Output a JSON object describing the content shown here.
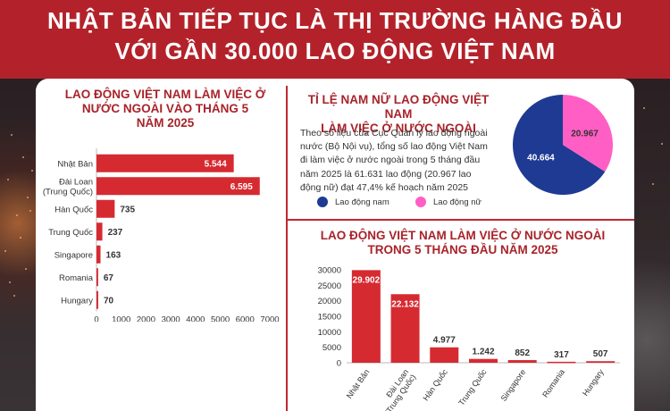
{
  "header": {
    "title_line1": "NHẬT BẢN TIẾP TỤC LÀ THỊ TRƯỜNG HÀNG ĐẦU",
    "title_line2": "VỚI GẦN 30.000 LAO ĐỘNG VIỆT NAM"
  },
  "colors": {
    "red": "#d62a31",
    "navy": "#1f3a93",
    "pink": "#ff5fc4",
    "title_red": "#a8232a",
    "header_bg": "#b3222a"
  },
  "chart_data": [
    {
      "type": "bar",
      "orientation": "horizontal",
      "title_lines": [
        "LAO ĐỘNG VIỆT NAM LÀM VIỆC Ở",
        "NƯỚC NGOÀI VÀO THÁNG 5",
        "NĂM 2025"
      ],
      "categories": [
        [
          "Nhật Bản"
        ],
        [
          "Đài Loan",
          "(Trung Quốc)"
        ],
        [
          "Hàn Quốc"
        ],
        [
          "Trung Quốc"
        ],
        [
          "Singapore"
        ],
        [
          "Romania"
        ],
        [
          "Hungary"
        ]
      ],
      "values": [
        5544,
        6595,
        735,
        237,
        163,
        67,
        70
      ],
      "value_labels": [
        "5.544",
        "6.595",
        "735",
        "237",
        "163",
        "67",
        "70"
      ],
      "xlim": [
        0,
        7000
      ],
      "ticks": [
        0,
        1000,
        2000,
        3000,
        4000,
        5000,
        6000,
        7000
      ]
    },
    {
      "type": "pie",
      "title_lines": [
        "TỈ LỆ NAM NỮ LAO ĐỘNG VIỆT NAM",
        "LÀM VIỆC Ở NƯỚC NGOÀI"
      ],
      "slices": [
        {
          "label": "Lao động nam",
          "value": 40664,
          "value_label": "40.664",
          "color": "#1f3a93"
        },
        {
          "label": "Lao động nữ",
          "value": 20967,
          "value_label": "20.967",
          "color": "#ff5fc4"
        }
      ],
      "description_lines": [
        "Theo số liệu của Cục Quản lý lao động ngoài",
        "nước (Bộ Nội vụ), tổng số lao động Việt Nam",
        "đi làm việc ở nước ngoài trong 5 tháng đầu",
        "năm 2025 là 61.631 lao động (20.967 lao",
        "động nữ) đạt 47,4% kế hoạch năm 2025"
      ]
    },
    {
      "type": "bar",
      "orientation": "vertical",
      "title_lines": [
        "LAO ĐỘNG VIỆT NAM LÀM VIỆC Ở NƯỚC NGOÀI",
        "TRONG 5 THÁNG ĐẦU NĂM 2025"
      ],
      "categories": [
        [
          "Nhật Bản"
        ],
        [
          "Đài Loan",
          "(Trung Quốc)"
        ],
        [
          "Hàn Quốc"
        ],
        [
          "Trung Quốc"
        ],
        [
          "Singapore"
        ],
        [
          "Romania"
        ],
        [
          "Hungary"
        ]
      ],
      "values": [
        29902,
        22132,
        4977,
        1242,
        852,
        317,
        507
      ],
      "value_labels": [
        "29.902",
        "22.132",
        "4.977",
        "1.242",
        "852",
        "317",
        "507"
      ],
      "ylim": [
        0,
        30000
      ],
      "ticks": [
        0,
        5000,
        10000,
        15000,
        20000,
        25000,
        30000
      ]
    }
  ]
}
